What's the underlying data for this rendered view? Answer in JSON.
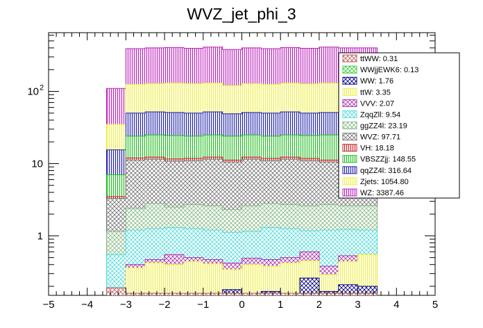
{
  "chart_data": {
    "type": "bar",
    "stacked": true,
    "title": "WVZ_jet_phi_3",
    "xlabel": "",
    "ylabel": "",
    "yscale": "log",
    "xlim": [
      -5,
      5
    ],
    "ylim": [
      0.15,
      650
    ],
    "x_ticks": [
      -5,
      -4,
      -3,
      -2,
      -1,
      0,
      1,
      2,
      3,
      4,
      5
    ],
    "y_ticks": [
      {
        "value": 1,
        "label": "1",
        "sup": ""
      },
      {
        "value": 10,
        "label": "10",
        "sup": ""
      },
      {
        "value": 100,
        "label": "10",
        "sup": "2"
      }
    ],
    "bin_edges": [
      -3.5,
      -3.0,
      -2.5,
      -2.0,
      -1.5,
      -1.0,
      -0.5,
      0.0,
      0.5,
      1.0,
      1.5,
      2.0,
      2.5,
      3.0,
      3.5
    ],
    "cumulative_totals": [
      110,
      390,
      400,
      405,
      395,
      410,
      380,
      400,
      390,
      405,
      395,
      410,
      400,
      400
    ],
    "series": [
      {
        "name": "ttWW",
        "yield": "0.31",
        "color": "#c06060",
        "pattern": "cross",
        "tops": [
          0.19,
          0.16,
          0.16,
          0.16,
          0.16,
          0.16,
          0.16,
          0.16,
          0.16,
          0.16,
          0.16,
          0.16,
          0.16,
          0.16
        ]
      },
      {
        "name": "WWjjEWK6",
        "yield": "0.13",
        "color": "#33cc33",
        "pattern": "cross",
        "tops": [
          0.19,
          0.16,
          0.16,
          0.16,
          0.16,
          0.16,
          0.16,
          0.16,
          0.16,
          0.16,
          0.16,
          0.16,
          0.16,
          0.16
        ]
      },
      {
        "name": "WW",
        "yield": "1.76",
        "color": "#000080",
        "pattern": "cross",
        "tops": [
          0.19,
          0.16,
          0.16,
          0.16,
          0.16,
          0.16,
          0.18,
          0.16,
          0.17,
          0.16,
          0.26,
          0.17,
          0.21,
          0.2
        ]
      },
      {
        "name": "ttW",
        "yield": "3.35",
        "color": "#eeee44",
        "pattern": "vert",
        "tops": [
          0.19,
          0.36,
          0.42,
          0.4,
          0.44,
          0.41,
          0.34,
          0.4,
          0.38,
          0.42,
          0.45,
          0.29,
          0.44,
          0.55
        ]
      },
      {
        "name": "VVV",
        "yield": "2.07",
        "color": "#aa33aa",
        "pattern": "cross",
        "tops": [
          0.19,
          0.4,
          0.47,
          0.55,
          0.5,
          0.47,
          0.42,
          0.49,
          0.47,
          0.5,
          0.6,
          0.38,
          0.53,
          0.55
        ]
      },
      {
        "name": "ZqqZll",
        "yield": "9.54",
        "color": "#55dddd",
        "pattern": "cross",
        "tops": [
          0.55,
          1.2,
          1.25,
          1.3,
          1.25,
          1.2,
          1.12,
          1.15,
          1.3,
          1.25,
          1.17,
          1.2,
          1.22,
          1.2
        ]
      },
      {
        "name": "ggZZ4l",
        "yield": "23.19",
        "color": "#88bb88",
        "pattern": "cross",
        "tops": [
          1.15,
          2.4,
          2.8,
          2.5,
          2.7,
          2.6,
          2.3,
          2.6,
          2.8,
          2.7,
          2.6,
          2.7,
          2.6,
          2.6
        ]
      },
      {
        "name": "WVZ",
        "yield": "97.71",
        "color": "#777777",
        "pattern": "cross",
        "tops": [
          3.3,
          11.2,
          11.5,
          10.8,
          11.0,
          11.5,
          10.5,
          11.5,
          11.0,
          11.5,
          11.0,
          10.5,
          11.5,
          11.0
        ]
      },
      {
        "name": "VH",
        "yield": "18.18",
        "color": "#cc2222",
        "pattern": "vert",
        "tops": [
          3.5,
          12.0,
          12.3,
          11.6,
          11.8,
          12.3,
          11.2,
          12.3,
          11.8,
          12.3,
          11.8,
          11.2,
          12.3,
          11.8
        ]
      },
      {
        "name": "VBSZZjj",
        "yield": "148.55",
        "color": "#22bb22",
        "pattern": "vert",
        "tops": [
          7.0,
          24.0,
          25.0,
          24.5,
          24.0,
          25.0,
          24.0,
          25.0,
          24.0,
          25.0,
          24.5,
          25.0,
          24.0,
          24.5
        ]
      },
      {
        "name": "qqZZ4l",
        "yield": "316.64",
        "color": "#2222aa",
        "pattern": "vert",
        "tops": [
          15.5,
          50.0,
          52.0,
          51.0,
          50.0,
          52.0,
          49.0,
          51.0,
          50.0,
          52.0,
          50.0,
          51.0,
          50.0,
          50.0
        ]
      },
      {
        "name": "Zjets",
        "yield": "1054.80",
        "color": "#eeee44",
        "pattern": "vert",
        "tops": [
          35.0,
          125.0,
          128.0,
          130.0,
          128.0,
          130.0,
          120.0,
          128.0,
          125.0,
          130.0,
          127.0,
          130.0,
          128.0,
          128.0
        ]
      },
      {
        "name": "WZ",
        "yield": "3387.46",
        "color": "#bb22bb",
        "pattern": "vert",
        "tops": [
          110.0,
          390.0,
          400.0,
          405.0,
          395.0,
          410.0,
          380.0,
          400.0,
          390.0,
          405.0,
          395.0,
          410.0,
          400.0,
          400.0
        ]
      }
    ]
  }
}
